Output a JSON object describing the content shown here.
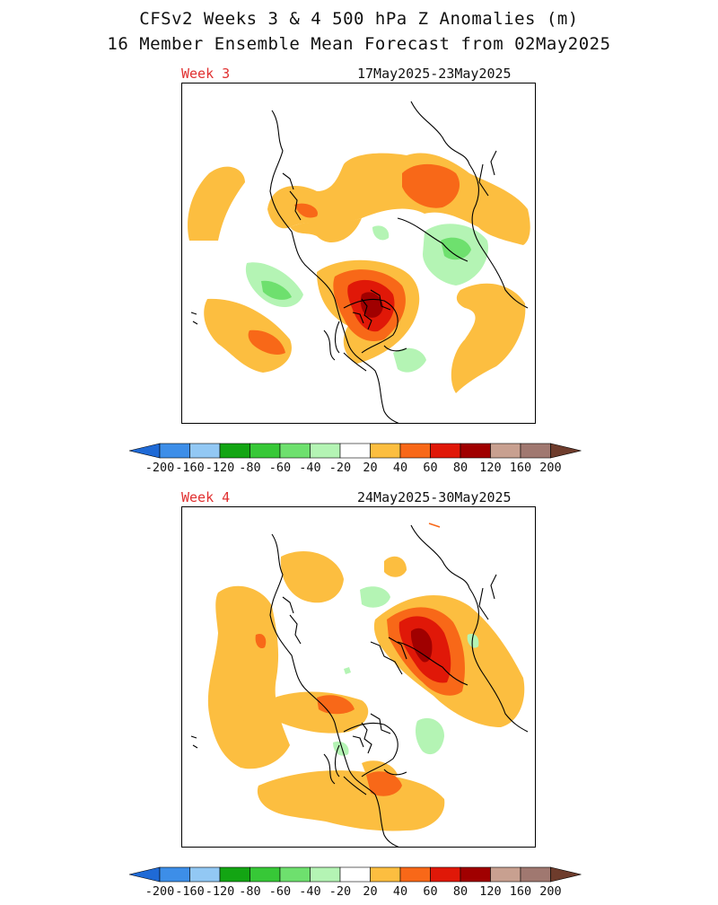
{
  "header": {
    "title": "CFSv2 Weeks 3 & 4 500 hPa Z Anomalies (m)",
    "subtitle": "16 Member Ensemble Mean Forecast from 02May2025"
  },
  "panels": [
    {
      "label": "Week 3",
      "dates": "17May2025-23May2025"
    },
    {
      "label": "Week 4",
      "dates": "24May2025-30May2025"
    }
  ],
  "colorbar": {
    "bins": [
      {
        "color": "#3d8ee8"
      },
      {
        "color": "#92c8f4"
      },
      {
        "color": "#13a513"
      },
      {
        "color": "#37c837"
      },
      {
        "color": "#6ee06e"
      },
      {
        "color": "#b4f4b4"
      },
      {
        "color": "#ffffff"
      },
      {
        "color": "#fcbe40"
      },
      {
        "color": "#f86818"
      },
      {
        "color": "#e01808"
      },
      {
        "color": "#a00000"
      },
      {
        "color": "#c8a090"
      },
      {
        "color": "#a07870"
      }
    ],
    "low_arrow_color": "#1f6ad6",
    "high_arrow_color": "#6e3c2c",
    "tick_labels": [
      "-200",
      "-160",
      "-120",
      "-80",
      "-60",
      "-40",
      "-20",
      "20",
      "40",
      "60",
      "80",
      "120",
      "160",
      "200"
    ]
  },
  "colors": {
    "pos20": "#fcbe40",
    "pos40": "#f86818",
    "pos60": "#e01808",
    "pos80": "#a00000",
    "neg20": "#b4f4b4",
    "neg40": "#6ee06e",
    "coast": "#000000"
  }
}
